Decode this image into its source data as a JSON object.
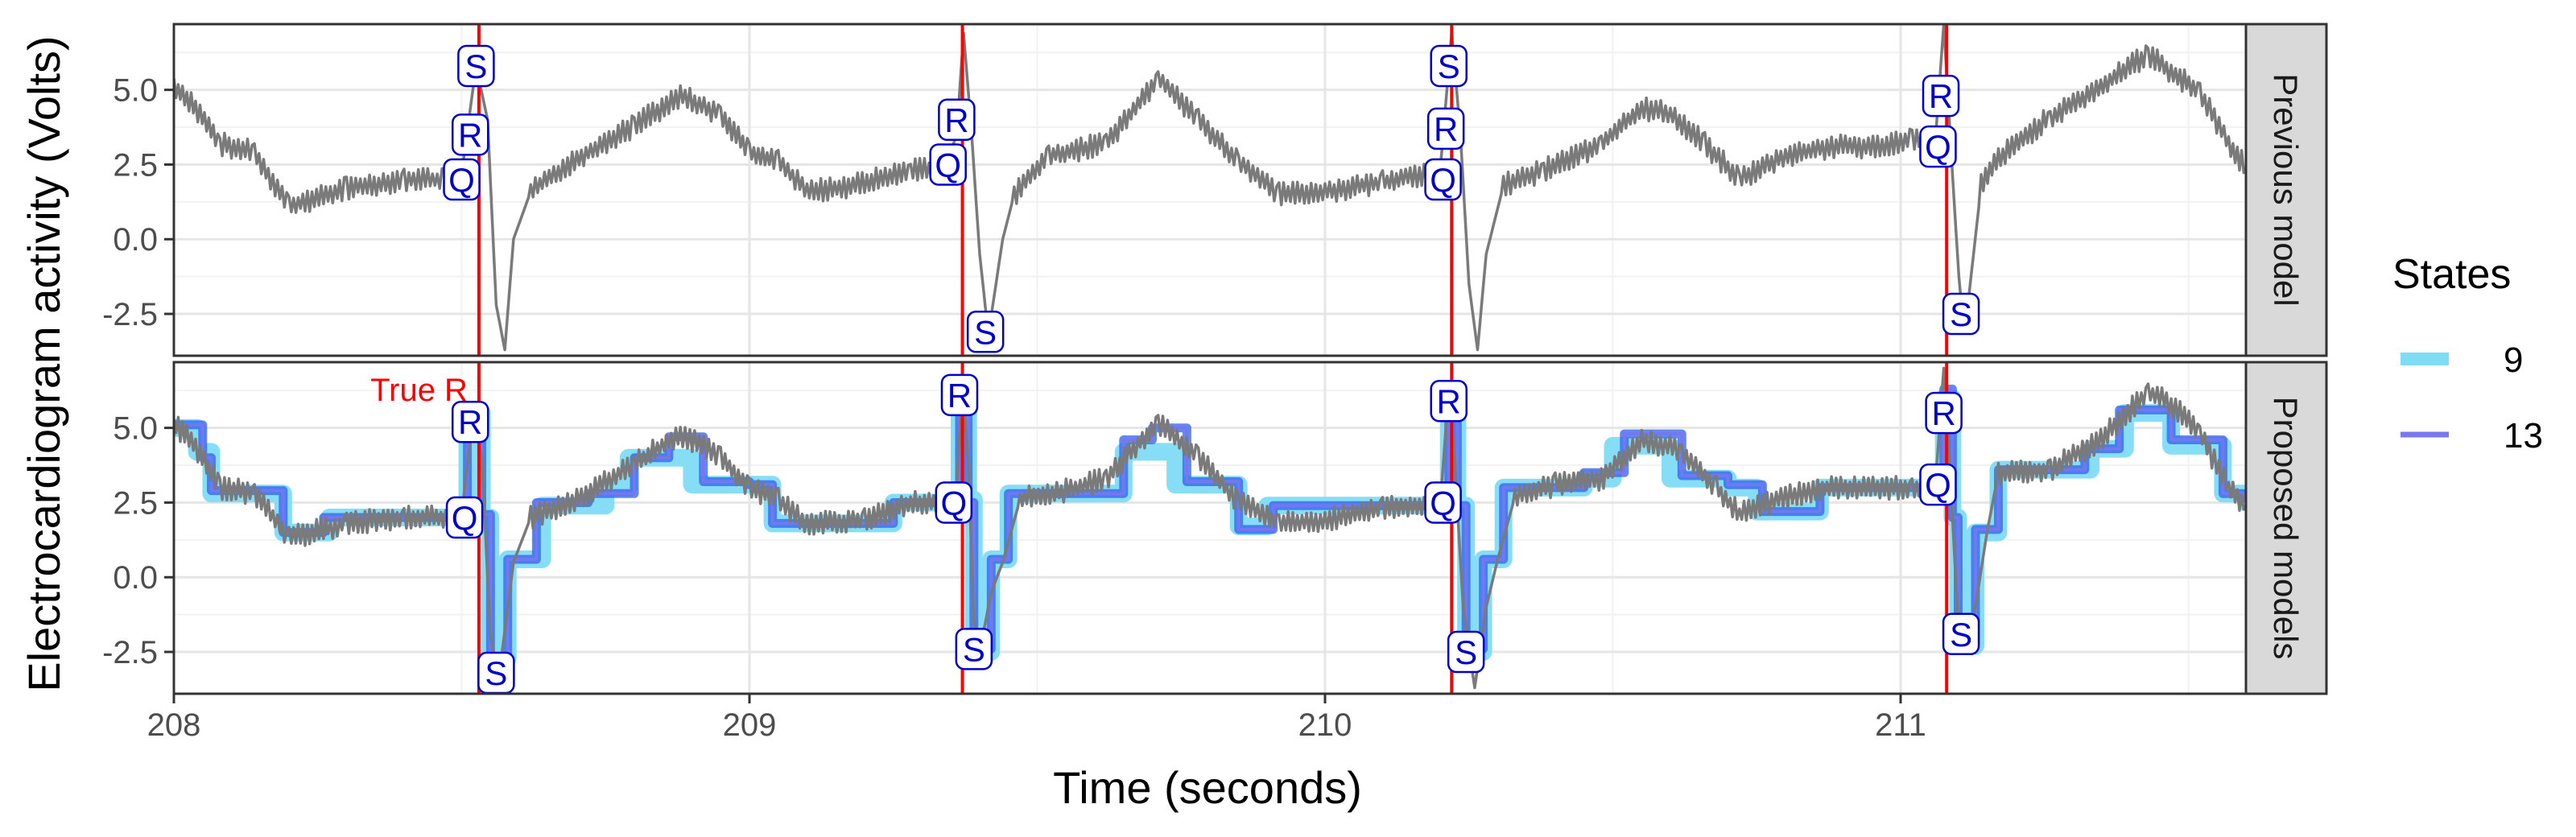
{
  "chart_data": {
    "type": "line",
    "xlabel": "Time (seconds)",
    "ylabel": "Electrocardiogram activity (Volts)",
    "xlim": [
      208,
      211.6
    ],
    "x_ticks": [
      "208",
      "209",
      "210",
      "211"
    ],
    "ylim": [
      -3.9,
      7.2
    ],
    "y_ticks": [
      "-2.5",
      "0.0",
      "2.5",
      "5.0"
    ],
    "grid": true,
    "legend": {
      "title": "States",
      "position": "right",
      "entries": [
        {
          "name": "9",
          "color": "#7fdcf5"
        },
        {
          "name": "13",
          "color": "#7777ee"
        }
      ]
    },
    "colors": {
      "signal": "#7a7a7a",
      "true_r_line": "#ff0000",
      "label_border": "#0000cc",
      "states_9": "#7fdcf5",
      "states_13": "#7777ee",
      "fit_overlap": "#3060ee"
    },
    "true_r_times": [
      208.53,
      209.37,
      210.22,
      211.08
    ],
    "true_r_label": "True R",
    "panels": [
      {
        "name": "Previous model",
        "signal_keypoints": [
          [
            208.0,
            5.1
          ],
          [
            208.03,
            4.6
          ],
          [
            208.08,
            3.2
          ],
          [
            208.14,
            2.9
          ],
          [
            208.2,
            1.1
          ],
          [
            208.3,
            1.7
          ],
          [
            208.4,
            2.0
          ],
          [
            208.47,
            2.0
          ],
          [
            208.5,
            2.2
          ],
          [
            208.525,
            5.8
          ],
          [
            208.545,
            4.0
          ],
          [
            208.56,
            -2.2
          ],
          [
            208.575,
            -3.7
          ],
          [
            208.59,
            0.0
          ],
          [
            208.62,
            1.6
          ],
          [
            208.7,
            2.7
          ],
          [
            208.8,
            3.8
          ],
          [
            208.88,
            4.8
          ],
          [
            208.95,
            4.2
          ],
          [
            209.0,
            2.9
          ],
          [
            209.05,
            2.6
          ],
          [
            209.1,
            1.6
          ],
          [
            209.18,
            1.8
          ],
          [
            209.28,
            2.3
          ],
          [
            209.34,
            2.4
          ],
          [
            209.36,
            3.5
          ],
          [
            209.372,
            6.9
          ],
          [
            209.385,
            3.8
          ],
          [
            209.4,
            -0.5
          ],
          [
            209.415,
            -3.2
          ],
          [
            209.44,
            0.0
          ],
          [
            209.46,
            1.5
          ],
          [
            209.52,
            2.8
          ],
          [
            209.62,
            3.2
          ],
          [
            209.71,
            5.4
          ],
          [
            209.78,
            4.0
          ],
          [
            209.85,
            2.6
          ],
          [
            209.92,
            1.5
          ],
          [
            210.0,
            1.6
          ],
          [
            210.1,
            1.9
          ],
          [
            210.2,
            2.3
          ],
          [
            210.22,
            6.9
          ],
          [
            210.235,
            3.6
          ],
          [
            210.25,
            -1.5
          ],
          [
            210.265,
            -3.7
          ],
          [
            210.28,
            -0.5
          ],
          [
            210.31,
            1.8
          ],
          [
            210.38,
            2.3
          ],
          [
            210.48,
            3.2
          ],
          [
            210.55,
            4.4
          ],
          [
            210.6,
            4.2
          ],
          [
            210.66,
            3.2
          ],
          [
            210.72,
            2.0
          ],
          [
            210.8,
            2.8
          ],
          [
            210.88,
            3.1
          ],
          [
            210.96,
            3.1
          ],
          [
            211.02,
            3.4
          ],
          [
            211.06,
            3.2
          ],
          [
            211.075,
            7.2
          ],
          [
            211.09,
            2.2
          ],
          [
            211.105,
            -2.4
          ],
          [
            211.118,
            -2.0
          ],
          [
            211.14,
            1.8
          ],
          [
            211.17,
            2.7
          ],
          [
            211.26,
            4.1
          ],
          [
            211.34,
            5.0
          ],
          [
            211.43,
            6.2
          ],
          [
            211.47,
            5.6
          ],
          [
            211.52,
            4.9
          ],
          [
            211.57,
            3.2
          ],
          [
            211.6,
            2.4
          ]
        ],
        "point_labels": [
          {
            "label": "S",
            "x": 208.525,
            "y": 5.8
          },
          {
            "label": "R",
            "x": 208.515,
            "y": 3.5
          },
          {
            "label": "Q",
            "x": 208.5,
            "y": 2.0
          },
          {
            "label": "R",
            "x": 209.36,
            "y": 4.0
          },
          {
            "label": "Q",
            "x": 209.345,
            "y": 2.5
          },
          {
            "label": "S",
            "x": 209.41,
            "y": -3.1
          },
          {
            "label": "S",
            "x": 210.215,
            "y": 5.8
          },
          {
            "label": "R",
            "x": 210.21,
            "y": 3.7
          },
          {
            "label": "Q",
            "x": 210.205,
            "y": 2.0
          },
          {
            "label": "R",
            "x": 211.07,
            "y": 4.8
          },
          {
            "label": "Q",
            "x": 211.065,
            "y": 3.1
          },
          {
            "label": "S",
            "x": 211.105,
            "y": -2.5
          }
        ]
      },
      {
        "name": "Proposed models",
        "signal_keypoints": [
          [
            208.0,
            5.1
          ],
          [
            208.03,
            4.6
          ],
          [
            208.08,
            3.0
          ],
          [
            208.14,
            2.8
          ],
          [
            208.2,
            1.3
          ],
          [
            208.3,
            1.8
          ],
          [
            208.4,
            2.0
          ],
          [
            208.48,
            2.0
          ],
          [
            208.5,
            2.1
          ],
          [
            208.52,
            5.5
          ],
          [
            208.535,
            4.0
          ],
          [
            208.55,
            -2.0
          ],
          [
            208.565,
            -3.3
          ],
          [
            208.59,
            0.5
          ],
          [
            208.62,
            2.0
          ],
          [
            208.7,
            2.6
          ],
          [
            208.8,
            3.8
          ],
          [
            208.88,
            4.8
          ],
          [
            208.95,
            4.0
          ],
          [
            209.0,
            3.0
          ],
          [
            209.05,
            2.6
          ],
          [
            209.1,
            1.8
          ],
          [
            209.2,
            1.9
          ],
          [
            209.28,
            2.5
          ],
          [
            209.34,
            2.5
          ],
          [
            209.36,
            3.0
          ],
          [
            209.37,
            6.5
          ],
          [
            209.38,
            4.0
          ],
          [
            209.39,
            -1.5
          ],
          [
            209.4,
            -2.5
          ],
          [
            209.42,
            -0.5
          ],
          [
            209.44,
            0.5
          ],
          [
            209.47,
            2.6
          ],
          [
            209.55,
            2.9
          ],
          [
            209.62,
            3.3
          ],
          [
            209.71,
            5.2
          ],
          [
            209.78,
            4.0
          ],
          [
            209.85,
            2.5
          ],
          [
            209.92,
            1.8
          ],
          [
            210.0,
            1.9
          ],
          [
            210.1,
            2.3
          ],
          [
            210.2,
            2.4
          ],
          [
            210.215,
            6.3
          ],
          [
            210.225,
            4.0
          ],
          [
            210.24,
            -1.0
          ],
          [
            210.26,
            -3.7
          ],
          [
            210.28,
            -1.0
          ],
          [
            210.3,
            0.6
          ],
          [
            210.33,
            2.7
          ],
          [
            210.4,
            3.1
          ],
          [
            210.48,
            3.3
          ],
          [
            210.55,
            4.6
          ],
          [
            210.62,
            4.2
          ],
          [
            210.68,
            3.0
          ],
          [
            210.72,
            2.1
          ],
          [
            210.8,
            2.7
          ],
          [
            210.88,
            3.0
          ],
          [
            210.96,
            3.0
          ],
          [
            211.02,
            3.0
          ],
          [
            211.06,
            3.0
          ],
          [
            211.075,
            7.0
          ],
          [
            211.09,
            2.0
          ],
          [
            211.1,
            -1.5
          ],
          [
            211.115,
            -2.5
          ],
          [
            211.13,
            -1.0
          ],
          [
            211.15,
            1.5
          ],
          [
            211.17,
            3.5
          ],
          [
            211.26,
            3.6
          ],
          [
            211.34,
            4.5
          ],
          [
            211.43,
            6.2
          ],
          [
            211.47,
            5.8
          ],
          [
            211.52,
            4.8
          ],
          [
            211.57,
            3.0
          ],
          [
            211.6,
            2.4
          ]
        ],
        "fit_9_states": [
          [
            208.0,
            5.0
          ],
          [
            208.04,
            4.2
          ],
          [
            208.065,
            2.8
          ],
          [
            208.19,
            1.5
          ],
          [
            208.27,
            2.0
          ],
          [
            208.495,
            2.0
          ],
          [
            208.51,
            5.5
          ],
          [
            208.535,
            2.0
          ],
          [
            208.55,
            -2.7
          ],
          [
            208.58,
            0.6
          ],
          [
            208.64,
            2.4
          ],
          [
            208.75,
            3.0
          ],
          [
            208.79,
            4.0
          ],
          [
            208.9,
            3.1
          ],
          [
            209.0,
            3.1
          ],
          [
            209.04,
            1.8
          ],
          [
            209.25,
            2.5
          ],
          [
            209.355,
            2.4
          ],
          [
            209.365,
            6.0
          ],
          [
            209.38,
            2.6
          ],
          [
            209.39,
            -2.5
          ],
          [
            209.42,
            0.6
          ],
          [
            209.45,
            2.8
          ],
          [
            209.65,
            4.2
          ],
          [
            209.74,
            3.1
          ],
          [
            209.85,
            1.7
          ],
          [
            209.9,
            2.4
          ],
          [
            210.205,
            2.4
          ],
          [
            210.215,
            6.0
          ],
          [
            210.23,
            2.4
          ],
          [
            210.245,
            -2.5
          ],
          [
            210.275,
            0.6
          ],
          [
            210.31,
            3.0
          ],
          [
            210.45,
            3.3
          ],
          [
            210.5,
            4.4
          ],
          [
            210.6,
            3.3
          ],
          [
            210.7,
            3.0
          ],
          [
            210.75,
            2.2
          ],
          [
            210.86,
            3.0
          ],
          [
            211.065,
            3.0
          ],
          [
            211.075,
            6.0
          ],
          [
            211.09,
            2.0
          ],
          [
            211.1,
            -2.3
          ],
          [
            211.13,
            1.5
          ],
          [
            211.17,
            3.6
          ],
          [
            211.33,
            4.3
          ],
          [
            211.39,
            5.5
          ],
          [
            211.47,
            4.4
          ],
          [
            211.56,
            2.8
          ],
          [
            211.6,
            2.5
          ]
        ],
        "fit_13_states": [
          [
            208.0,
            5.1
          ],
          [
            208.05,
            4.0
          ],
          [
            208.065,
            2.9
          ],
          [
            208.19,
            1.5
          ],
          [
            208.26,
            2.0
          ],
          [
            208.5,
            2.1
          ],
          [
            208.51,
            5.2
          ],
          [
            208.535,
            2.1
          ],
          [
            208.55,
            -3.0
          ],
          [
            208.58,
            0.6
          ],
          [
            208.63,
            2.5
          ],
          [
            208.72,
            2.8
          ],
          [
            208.8,
            4.0
          ],
          [
            208.86,
            4.7
          ],
          [
            208.92,
            3.2
          ],
          [
            209.0,
            3.1
          ],
          [
            209.04,
            1.8
          ],
          [
            209.25,
            2.5
          ],
          [
            209.355,
            2.5
          ],
          [
            209.365,
            6.3
          ],
          [
            209.38,
            2.5
          ],
          [
            209.39,
            -2.4
          ],
          [
            209.42,
            0.6
          ],
          [
            209.45,
            2.8
          ],
          [
            209.65,
            4.6
          ],
          [
            209.7,
            5.0
          ],
          [
            209.76,
            3.2
          ],
          [
            209.85,
            1.6
          ],
          [
            209.91,
            2.4
          ],
          [
            210.205,
            2.4
          ],
          [
            210.215,
            6.0
          ],
          [
            210.23,
            2.4
          ],
          [
            210.245,
            -2.4
          ],
          [
            210.275,
            0.6
          ],
          [
            210.31,
            3.0
          ],
          [
            210.45,
            3.5
          ],
          [
            210.52,
            4.8
          ],
          [
            210.62,
            3.4
          ],
          [
            210.7,
            3.1
          ],
          [
            210.76,
            2.2
          ],
          [
            210.86,
            3.0
          ],
          [
            211.065,
            3.0
          ],
          [
            211.075,
            6.3
          ],
          [
            211.09,
            2.0
          ],
          [
            211.1,
            -2.2
          ],
          [
            211.13,
            1.6
          ],
          [
            211.17,
            3.6
          ],
          [
            211.32,
            4.3
          ],
          [
            211.38,
            5.6
          ],
          [
            211.47,
            4.6
          ],
          [
            211.56,
            2.8
          ],
          [
            211.6,
            2.5
          ]
        ],
        "point_labels": [
          {
            "label": "R",
            "x": 208.515,
            "y": 5.2
          },
          {
            "label": "Q",
            "x": 208.505,
            "y": 2.0
          },
          {
            "label": "S",
            "x": 208.56,
            "y": -3.2
          },
          {
            "label": "R",
            "x": 209.365,
            "y": 6.1
          },
          {
            "label": "Q",
            "x": 209.355,
            "y": 2.5
          },
          {
            "label": "S",
            "x": 209.39,
            "y": -2.4
          },
          {
            "label": "R",
            "x": 210.215,
            "y": 5.9
          },
          {
            "label": "Q",
            "x": 210.205,
            "y": 2.5
          },
          {
            "label": "S",
            "x": 210.245,
            "y": -2.5
          },
          {
            "label": "R",
            "x": 211.075,
            "y": 5.5
          },
          {
            "label": "Q",
            "x": 211.065,
            "y": 3.1
          },
          {
            "label": "S",
            "x": 211.105,
            "y": -1.9
          }
        ]
      }
    ]
  }
}
